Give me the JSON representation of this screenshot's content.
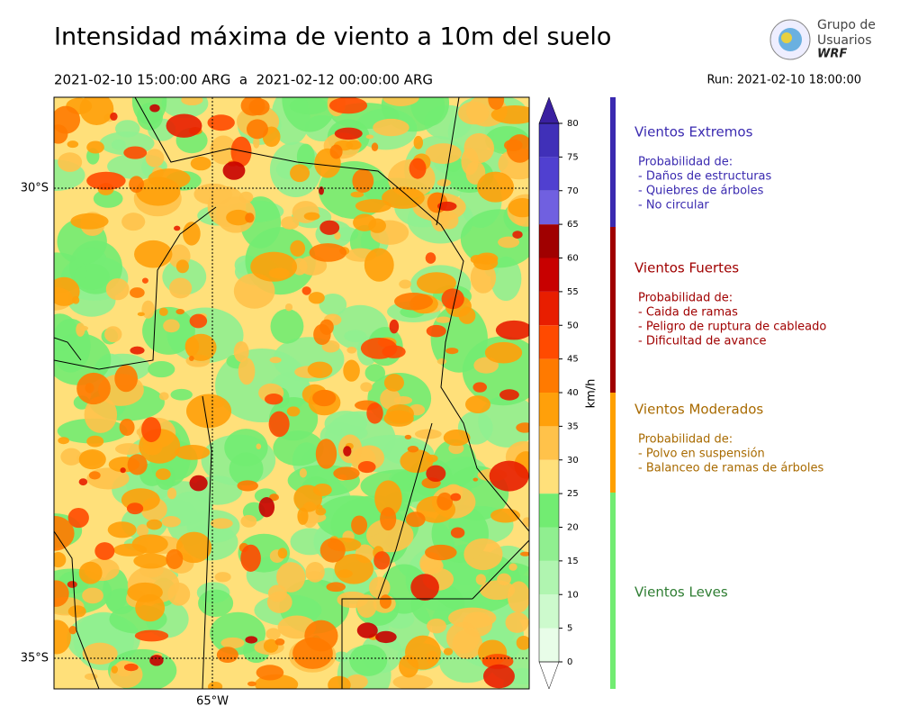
{
  "title": "Intensidad máxima de viento a 10m del suelo",
  "period": "2021-02-10 15:00:00 ARG  a  2021-02-12 00:00:00 ARG",
  "run": "Run: 2021-02-10 18:00:00",
  "logo": {
    "line1": "Grupo de",
    "line2": "Usuarios",
    "line3": "WRF"
  },
  "map": {
    "lat_labels": [
      "30°S",
      "35°S"
    ],
    "lon_labels": [
      "65°W"
    ]
  },
  "colorbar": {
    "label": "km/h",
    "ticks": [
      0,
      5,
      10,
      15,
      20,
      25,
      30,
      35,
      40,
      45,
      50,
      55,
      60,
      65,
      70,
      75,
      80
    ],
    "colors": [
      "#e8fde8",
      "#cdfacd",
      "#b0f5b0",
      "#90ef90",
      "#72ec72",
      "#ffe07a",
      "#ffc24a",
      "#ffa00a",
      "#ff7a00",
      "#ff4a00",
      "#e81e00",
      "#c80000",
      "#a00000",
      "#7060e0",
      "#5040d0",
      "#4030b8"
    ],
    "over_color": "#3a20a0",
    "under_color": "#ffffff"
  },
  "legend": [
    {
      "title": "Vientos Extremos",
      "color": "#3a2ab0",
      "text_color": "#3a2ab0",
      "lines": [
        "Probabilidad de:",
        "- Daños de estructuras",
        "- Quiebres de árboles",
        "- No circular"
      ]
    },
    {
      "title": "Vientos Fuertes",
      "color": "#a00000",
      "text_color": "#a00000",
      "lines": [
        "Probabilidad de:",
        "- Caida de ramas",
        "- Peligro de ruptura de cableado",
        "- Dificultad de avance"
      ]
    },
    {
      "title": "Vientos Moderados",
      "color": "#ffa000",
      "text_color": "#a86a00",
      "lines": [
        "Probabilidad de:",
        "- Polvo en suspensión",
        "- Balanceo de ramas de árboles"
      ]
    },
    {
      "title": "Vientos Leves",
      "color": "#72ec72",
      "text_color": "#2e7d32",
      "lines": []
    }
  ]
}
